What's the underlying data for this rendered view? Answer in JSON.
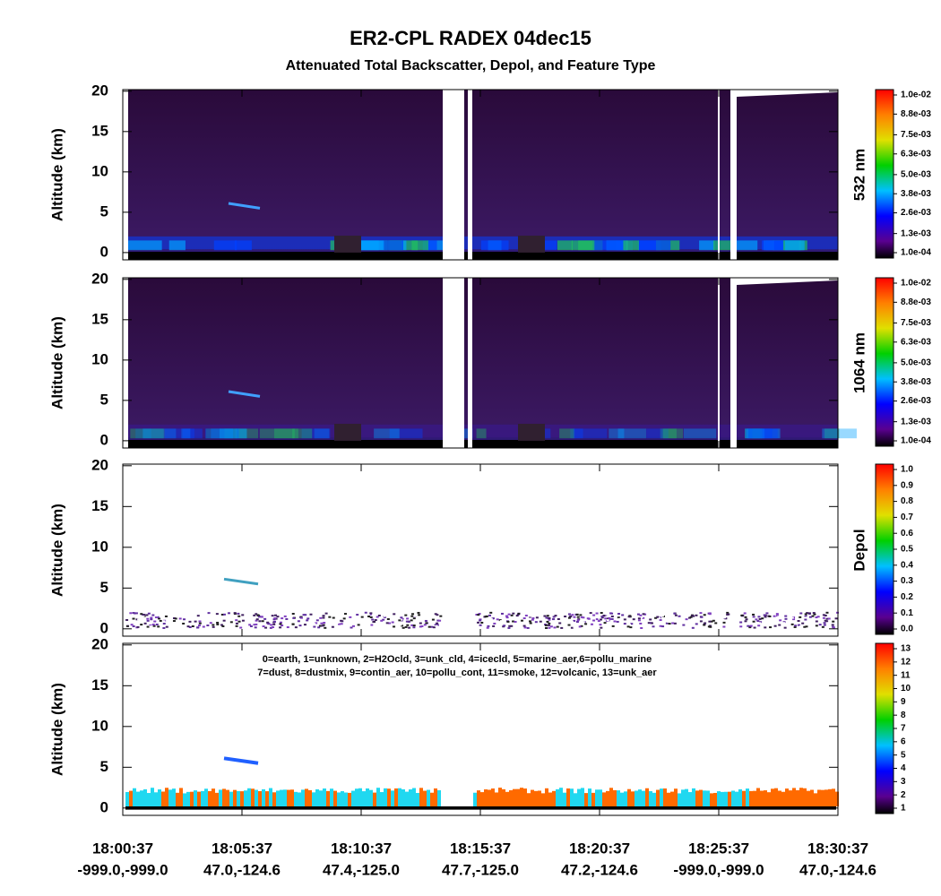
{
  "title": "ER2-CPL RADEX 04dec15",
  "subtitle": "Attenuated Total Backscatter, Depol, and Feature Type",
  "x_labels": [
    {
      "time": "18:00:37",
      "position": "-999.0,-999.0"
    },
    {
      "time": "18:05:37",
      "position": "47.0,-124.6"
    },
    {
      "time": "18:10:37",
      "position": "47.4,-125.0"
    },
    {
      "time": "18:15:37",
      "position": "47.7,-125.0"
    },
    {
      "time": "18:20:37",
      "position": "47.2,-124.6"
    },
    {
      "time": "18:25:37",
      "position": "-999.0,-999.0"
    },
    {
      "time": "18:30:37",
      "position": "47.0,-124.6"
    }
  ],
  "chart_data": [
    {
      "type": "backscatter",
      "ylabel": "Altitude (km)",
      "ylim": [
        -0.9,
        20.2
      ],
      "yticks": [
        0,
        5,
        10,
        15,
        20
      ],
      "colorbar_label": "532 nm",
      "colorbar_ticks": [
        {
          "value": 0.0001,
          "label": "1.0e-04"
        },
        {
          "value": 0.0013,
          "label": "1.3e-03"
        },
        {
          "value": 0.0026,
          "label": "2.6e-03"
        },
        {
          "value": 0.0038,
          "label": "3.8e-03"
        },
        {
          "value": 0.005,
          "label": "5.0e-03"
        },
        {
          "value": 0.0063,
          "label": "6.3e-03"
        },
        {
          "value": 0.0075,
          "label": "7.5e-03"
        },
        {
          "value": 0.0088,
          "label": "8.8e-03"
        },
        {
          "value": 0.01,
          "label": "1.0e-02"
        }
      ]
    },
    {
      "type": "backscatter",
      "ylabel": "Altitude (km)",
      "ylim": [
        -0.9,
        20.2
      ],
      "yticks": [
        0,
        5,
        10,
        15,
        20
      ],
      "colorbar_label": "1064 nm",
      "colorbar_ticks": [
        {
          "value": 0.0001,
          "label": "1.0e-04"
        },
        {
          "value": 0.0013,
          "label": "1.3e-03"
        },
        {
          "value": 0.0026,
          "label": "2.6e-03"
        },
        {
          "value": 0.0038,
          "label": "3.8e-03"
        },
        {
          "value": 0.005,
          "label": "5.0e-03"
        },
        {
          "value": 0.0063,
          "label": "6.3e-03"
        },
        {
          "value": 0.0075,
          "label": "7.5e-03"
        },
        {
          "value": 0.0088,
          "label": "8.8e-03"
        },
        {
          "value": 0.01,
          "label": "1.0e-02"
        }
      ]
    },
    {
      "type": "depol",
      "ylabel": "Altitude (km)",
      "ylim": [
        -0.9,
        20.2
      ],
      "yticks": [
        0,
        5,
        10,
        15,
        20
      ],
      "colorbar_label": "Depol",
      "colorbar_ticks": [
        {
          "value": 0,
          "label": "0.0"
        },
        0.1,
        0.2,
        0.3,
        0.4,
        0.5,
        0.6,
        0.7,
        0.8,
        0.9,
        {
          "value": 1,
          "label": "1.0"
        }
      ]
    },
    {
      "type": "feature",
      "ylabel": "Altitude (km)",
      "ylim": [
        -0.9,
        20.2
      ],
      "yticks": [
        0,
        5,
        10,
        15,
        20
      ],
      "legend": [
        "0=earth, 1=unknown, 2=H2Ocld, 3=unk_cld, 4=icecld, 5=marine_aer,6=pollu_marine",
        "7=dust, 8=dustmix, 9=contin_aer, 10=pollu_cont, 11=smoke, 12=volcanic, 13=unk_aer"
      ],
      "colorbar_ticks": [
        1,
        2,
        3,
        4,
        5,
        6,
        7,
        8,
        9,
        10,
        11,
        12,
        13
      ]
    }
  ]
}
